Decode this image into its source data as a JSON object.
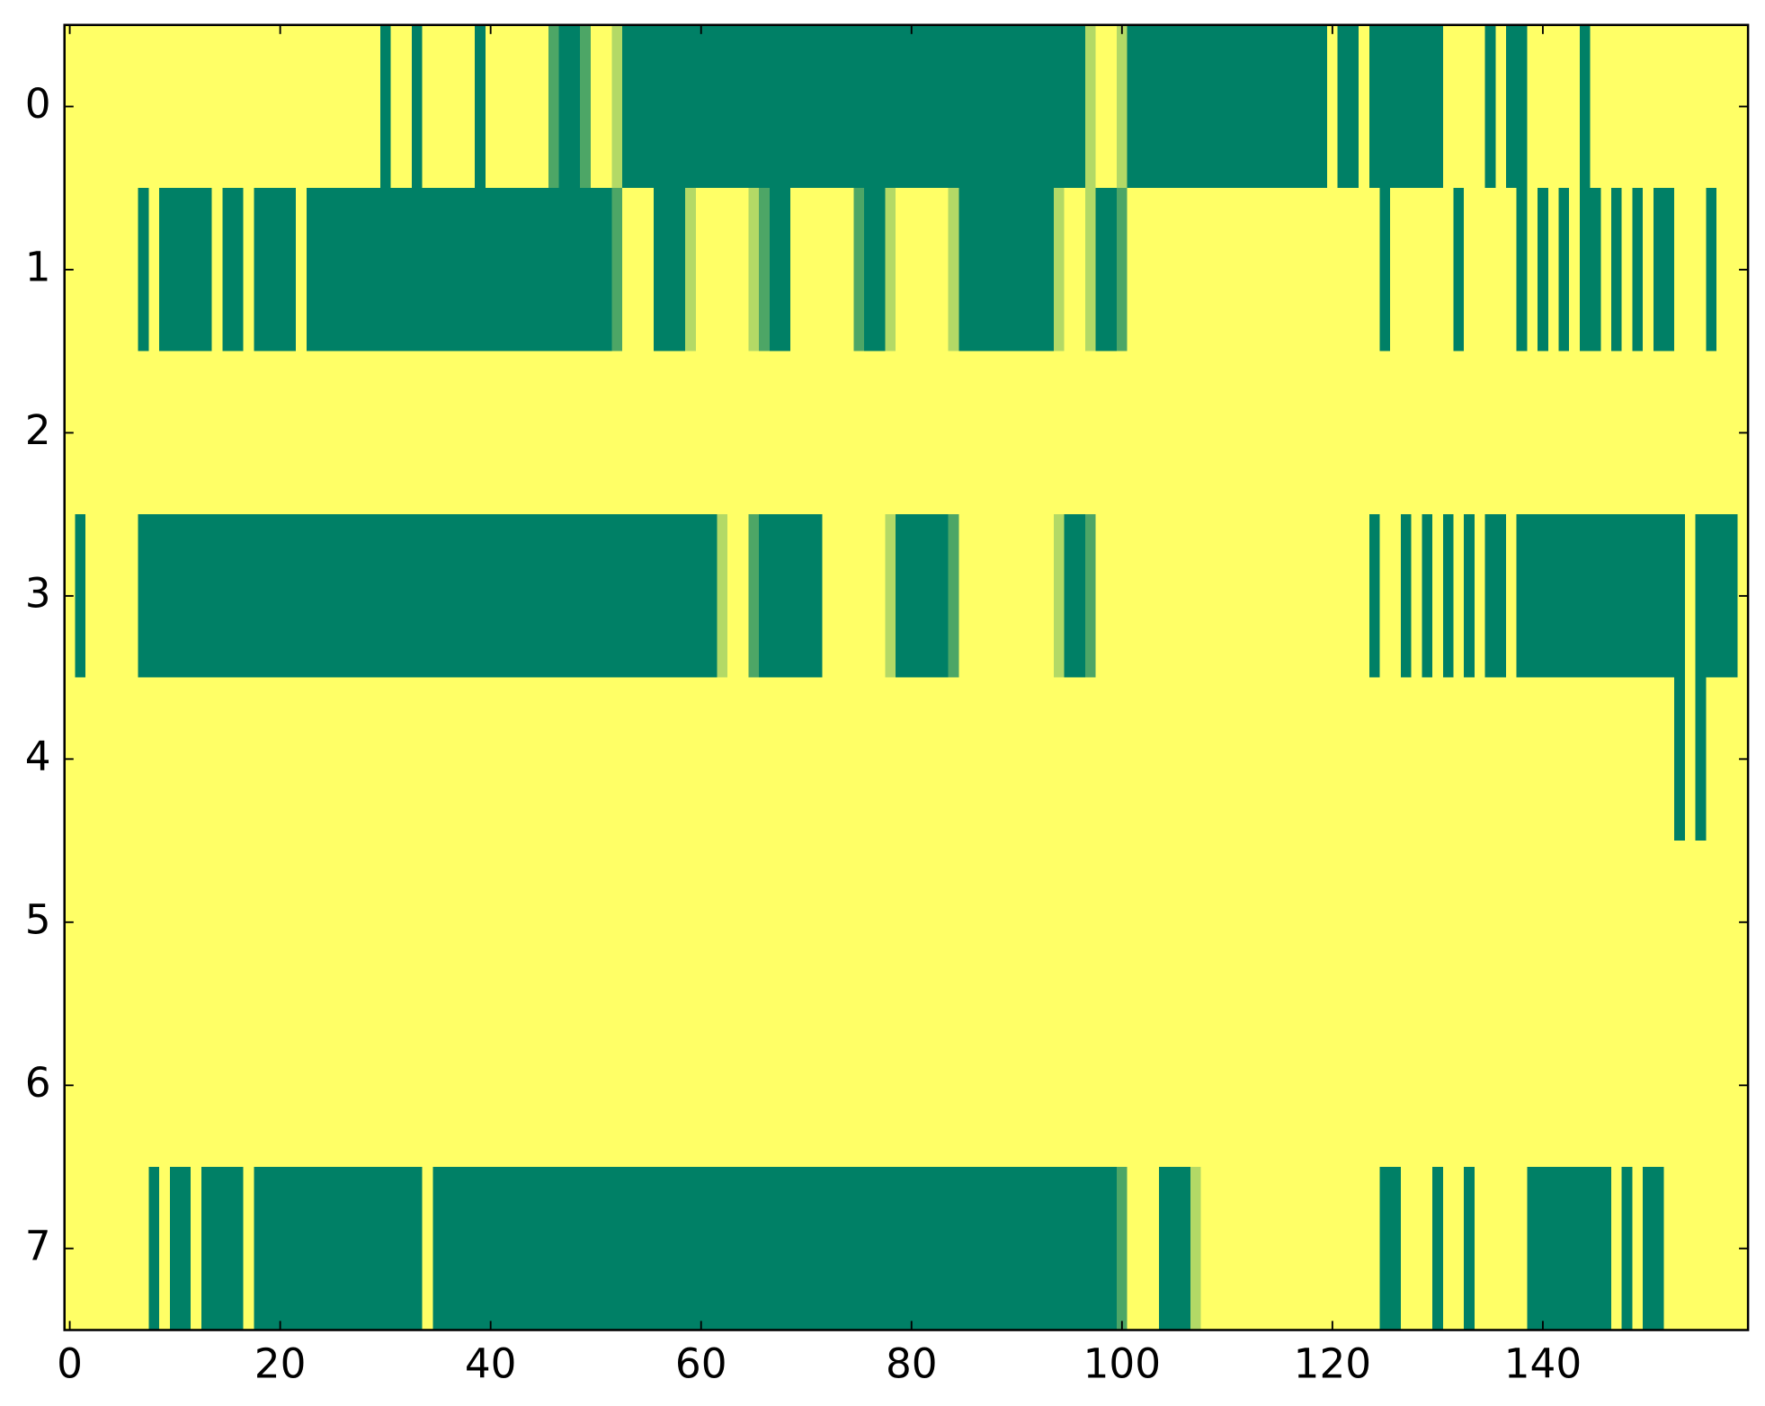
{
  "chart_data": {
    "type": "heatmap",
    "colormap": [
      "#008066",
      "#ffff66"
    ],
    "xlim": [
      -0.5,
      159.5
    ],
    "ylim": [
      7.5,
      -0.5
    ],
    "xticks": [
      0,
      20,
      40,
      60,
      80,
      100,
      120,
      140
    ],
    "yticks": [
      0,
      1,
      2,
      3,
      4,
      5,
      6,
      7
    ],
    "z": [
      [
        1,
        1,
        1,
        1,
        1,
        1,
        1,
        1,
        1,
        1,
        1,
        1,
        1,
        1,
        1,
        1,
        1,
        1,
        1,
        1,
        1,
        1,
        1,
        1,
        1,
        1,
        1,
        1,
        1,
        1,
        0,
        1,
        1,
        0,
        1,
        1,
        1,
        1,
        1,
        0,
        1,
        1,
        1,
        1,
        1,
        1,
        0.3,
        0,
        0,
        0.3,
        1,
        1,
        0.7,
        0,
        0,
        0,
        0,
        0,
        0,
        0,
        0,
        0,
        0,
        0,
        0,
        0,
        0,
        0,
        0,
        0,
        0,
        0,
        0,
        0,
        0,
        0,
        0,
        0,
        0,
        0,
        0,
        0,
        0,
        0,
        0,
        0,
        0,
        0,
        0,
        0,
        0,
        0,
        0,
        0,
        0,
        0,
        0,
        0.7,
        1,
        1,
        0.7,
        0,
        0,
        0,
        0,
        0,
        0,
        0,
        0,
        0,
        0,
        0,
        0,
        0,
        0,
        0,
        0,
        0,
        0,
        0,
        1,
        0,
        0,
        1,
        0,
        0,
        0,
        0,
        0,
        0,
        0,
        1,
        1,
        1,
        1,
        0,
        1,
        0,
        0,
        1,
        1,
        1,
        1,
        1,
        0,
        1,
        1,
        1,
        1,
        1,
        1,
        1,
        1,
        1,
        1,
        1,
        1,
        1,
        1,
        1
      ],
      [
        1,
        1,
        1,
        1,
        1,
        1,
        1,
        0,
        1,
        0,
        0,
        0,
        0,
        0,
        1,
        0,
        0,
        1,
        0,
        0,
        0,
        0,
        1,
        0,
        0,
        0,
        0,
        0,
        0,
        0,
        0,
        0,
        0,
        0,
        0,
        0,
        0,
        0,
        0,
        0,
        0,
        0,
        0,
        0,
        0,
        0,
        0,
        0,
        0,
        0,
        0,
        0,
        0.3,
        1,
        1,
        1,
        0,
        0,
        0,
        0.7,
        1,
        1,
        1,
        1,
        1,
        0.7,
        0.3,
        0,
        0,
        1,
        1,
        1,
        1,
        1,
        1,
        0.3,
        0,
        0,
        0.7,
        1,
        1,
        1,
        1,
        1,
        0.7,
        0,
        0,
        0,
        0,
        0,
        0,
        0,
        0,
        0,
        0.7,
        1,
        1,
        0.7,
        0,
        0,
        0.3,
        1,
        1,
        1,
        1,
        1,
        1,
        1,
        1,
        1,
        1,
        1,
        1,
        1,
        1,
        1,
        1,
        1,
        1,
        1,
        1,
        1,
        1,
        1,
        1,
        0,
        1,
        1,
        1,
        1,
        1,
        1,
        0,
        1,
        1,
        1,
        1,
        1,
        0,
        1,
        0,
        1,
        0,
        1,
        0,
        0,
        1,
        0,
        1,
        0,
        1,
        0,
        0,
        1,
        1,
        1,
        0,
        1,
        1,
        1
      ],
      [
        1,
        1,
        1,
        1,
        1,
        1,
        1,
        1,
        1,
        1,
        1,
        1,
        1,
        1,
        1,
        1,
        1,
        1,
        1,
        1,
        1,
        1,
        1,
        1,
        1,
        1,
        1,
        1,
        1,
        1,
        1,
        1,
        1,
        1,
        1,
        1,
        1,
        1,
        1,
        1,
        1,
        1,
        1,
        1,
        1,
        1,
        1,
        1,
        1,
        1,
        1,
        1,
        1,
        1,
        1,
        1,
        1,
        1,
        1,
        1,
        1,
        1,
        1,
        1,
        1,
        1,
        1,
        1,
        1,
        1,
        1,
        1,
        1,
        1,
        1,
        1,
        1,
        1,
        1,
        1,
        1,
        1,
        1,
        1,
        1,
        1,
        1,
        1,
        1,
        1,
        1,
        1,
        1,
        1,
        1,
        1,
        1,
        1,
        1,
        1,
        1,
        1,
        1,
        1,
        1,
        1,
        1,
        1,
        1,
        1,
        1,
        1,
        1,
        1,
        1,
        1,
        1,
        1,
        1,
        1,
        1,
        1,
        1,
        1,
        1,
        1,
        1,
        1,
        1,
        1,
        1,
        1,
        1,
        1,
        1,
        1,
        1,
        1,
        1,
        1,
        1,
        1,
        1,
        1,
        1,
        1,
        1,
        1,
        1,
        1,
        1,
        1,
        1,
        1,
        1,
        1,
        1,
        1,
        1,
        1
      ],
      [
        1,
        0,
        1,
        1,
        1,
        1,
        1,
        0,
        0,
        0,
        0,
        0,
        0,
        0,
        0,
        0,
        0,
        0,
        0,
        0,
        0,
        0,
        0,
        0,
        0,
        0,
        0,
        0,
        0,
        0,
        0,
        0,
        0,
        0,
        0,
        0,
        0,
        0,
        0,
        0,
        0,
        0,
        0,
        0,
        0,
        0,
        0,
        0,
        0,
        0,
        0,
        0,
        0,
        0,
        0,
        0,
        0,
        0,
        0,
        0,
        0,
        0,
        0.7,
        1,
        1,
        0.3,
        0,
        0,
        0,
        0,
        0,
        0,
        1,
        1,
        1,
        1,
        1,
        1,
        0.7,
        0,
        0,
        0,
        0,
        0,
        0.3,
        1,
        1,
        1,
        1,
        1,
        1,
        1,
        1,
        1,
        0.7,
        0,
        0,
        0.3,
        1,
        1,
        1,
        1,
        1,
        1,
        1,
        1,
        1,
        1,
        1,
        1,
        1,
        1,
        1,
        1,
        1,
        1,
        1,
        1,
        1,
        1,
        1,
        1,
        1,
        1,
        0,
        1,
        1,
        0,
        1,
        0,
        1,
        0,
        1,
        0,
        1,
        0,
        0,
        1,
        0,
        0,
        0,
        0,
        0,
        0,
        0,
        0,
        0,
        0,
        0,
        0,
        0,
        0,
        0,
        0,
        1,
        0,
        0,
        0,
        0,
        1
      ],
      [
        1,
        1,
        1,
        1,
        1,
        1,
        1,
        1,
        1,
        1,
        1,
        1,
        1,
        1,
        1,
        1,
        1,
        1,
        1,
        1,
        1,
        1,
        1,
        1,
        1,
        1,
        1,
        1,
        1,
        1,
        1,
        1,
        1,
        1,
        1,
        1,
        1,
        1,
        1,
        1,
        1,
        1,
        1,
        1,
        1,
        1,
        1,
        1,
        1,
        1,
        1,
        1,
        1,
        1,
        1,
        1,
        1,
        1,
        1,
        1,
        1,
        1,
        1,
        1,
        1,
        1,
        1,
        1,
        1,
        1,
        1,
        1,
        1,
        1,
        1,
        1,
        1,
        1,
        1,
        1,
        1,
        1,
        1,
        1,
        1,
        1,
        1,
        1,
        1,
        1,
        1,
        1,
        1,
        1,
        1,
        1,
        1,
        1,
        1,
        1,
        1,
        1,
        1,
        1,
        1,
        1,
        1,
        1,
        1,
        1,
        1,
        1,
        1,
        1,
        1,
        1,
        1,
        1,
        1,
        1,
        1,
        1,
        1,
        1,
        1,
        1,
        1,
        1,
        1,
        1,
        1,
        1,
        1,
        1,
        1,
        1,
        1,
        1,
        1,
        1,
        1,
        1,
        1,
        1,
        1,
        1,
        1,
        1,
        1,
        1,
        1,
        1,
        1,
        0,
        1,
        0,
        1,
        1,
        1,
        1
      ],
      [
        1,
        1,
        1,
        1,
        1,
        1,
        1,
        1,
        1,
        1,
        1,
        1,
        1,
        1,
        1,
        1,
        1,
        1,
        1,
        1,
        1,
        1,
        1,
        1,
        1,
        1,
        1,
        1,
        1,
        1,
        1,
        1,
        1,
        1,
        1,
        1,
        1,
        1,
        1,
        1,
        1,
        1,
        1,
        1,
        1,
        1,
        1,
        1,
        1,
        1,
        1,
        1,
        1,
        1,
        1,
        1,
        1,
        1,
        1,
        1,
        1,
        1,
        1,
        1,
        1,
        1,
        1,
        1,
        1,
        1,
        1,
        1,
        1,
        1,
        1,
        1,
        1,
        1,
        1,
        1,
        1,
        1,
        1,
        1,
        1,
        1,
        1,
        1,
        1,
        1,
        1,
        1,
        1,
        1,
        1,
        1,
        1,
        1,
        1,
        1,
        1,
        1,
        1,
        1,
        1,
        1,
        1,
        1,
        1,
        1,
        1,
        1,
        1,
        1,
        1,
        1,
        1,
        1,
        1,
        1,
        1,
        1,
        1,
        1,
        1,
        1,
        1,
        1,
        1,
        1,
        1,
        1,
        1,
        1,
        1,
        1,
        1,
        1,
        1,
        1,
        1,
        1,
        1,
        1,
        1,
        1,
        1,
        1,
        1,
        1,
        1,
        1,
        1,
        1,
        1,
        1,
        1,
        1,
        1,
        1
      ],
      [
        1,
        1,
        1,
        1,
        1,
        1,
        1,
        1,
        1,
        1,
        1,
        1,
        1,
        1,
        1,
        1,
        1,
        1,
        1,
        1,
        1,
        1,
        1,
        1,
        1,
        1,
        1,
        1,
        1,
        1,
        1,
        1,
        1,
        1,
        1,
        1,
        1,
        1,
        1,
        1,
        1,
        1,
        1,
        1,
        1,
        1,
        1,
        1,
        1,
        1,
        1,
        1,
        1,
        1,
        1,
        1,
        1,
        1,
        1,
        1,
        1,
        1,
        1,
        1,
        1,
        1,
        1,
        1,
        1,
        1,
        1,
        1,
        1,
        1,
        1,
        1,
        1,
        1,
        1,
        1,
        1,
        1,
        1,
        1,
        1,
        1,
        1,
        1,
        1,
        1,
        1,
        1,
        1,
        1,
        1,
        1,
        1,
        1,
        1,
        1,
        1,
        1,
        1,
        1,
        1,
        1,
        1,
        1,
        1,
        1,
        1,
        1,
        1,
        1,
        1,
        1,
        1,
        1,
        1,
        1,
        1,
        1,
        1,
        1,
        1,
        1,
        1,
        1,
        1,
        1,
        1,
        1,
        1,
        1,
        1,
        1,
        1,
        1,
        1,
        1,
        1,
        1,
        1,
        1,
        1,
        1,
        1,
        1,
        1,
        1,
        1,
        1,
        1,
        1,
        1,
        1,
        1,
        1,
        1,
        1
      ],
      [
        1,
        1,
        1,
        1,
        1,
        1,
        1,
        1,
        0,
        1,
        0,
        0,
        1,
        0,
        0,
        0,
        0,
        1,
        0,
        0,
        0,
        0,
        0,
        0,
        0,
        0,
        0,
        0,
        0,
        0,
        0,
        0,
        0,
        0,
        1,
        0,
        0,
        0,
        0,
        0,
        0,
        0,
        0,
        0,
        0,
        0,
        0,
        0,
        0,
        0,
        0,
        0,
        0,
        0,
        0,
        0,
        0,
        0,
        0,
        0,
        0,
        0,
        0,
        0,
        0,
        0,
        0,
        0,
        0,
        0,
        0,
        0,
        0,
        0,
        0,
        0,
        0,
        0,
        0,
        0,
        0,
        0,
        0,
        0,
        0,
        0,
        0,
        0,
        0,
        0,
        0,
        0,
        0,
        0,
        0,
        0,
        0,
        0,
        0,
        0,
        0.3,
        1,
        1,
        1,
        0,
        0,
        0,
        0.7,
        1,
        1,
        1,
        1,
        1,
        1,
        1,
        1,
        1,
        1,
        1,
        1,
        1,
        1,
        1,
        1,
        1,
        0,
        0,
        1,
        1,
        1,
        0,
        1,
        1,
        0,
        1,
        1,
        1,
        1,
        1,
        0,
        0,
        0,
        0,
        0,
        0,
        0,
        0,
        1,
        0,
        1,
        0,
        0,
        1,
        1,
        1,
        1,
        1,
        1,
        1,
        1
      ]
    ]
  }
}
